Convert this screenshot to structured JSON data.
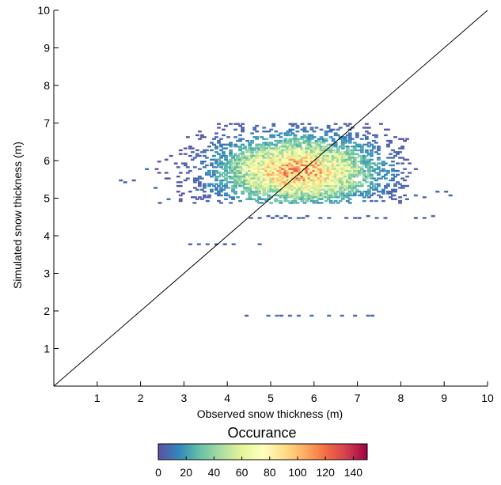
{
  "chart_data": {
    "type": "heatmap",
    "title": "",
    "xlabel": "Observed snow thickness (m)",
    "ylabel": "Simulated snow thickness (m)",
    "xlim": [
      0,
      10
    ],
    "ylim": [
      0,
      10
    ],
    "x_ticks": [
      1,
      2,
      3,
      4,
      5,
      6,
      7,
      8,
      9,
      10
    ],
    "y_ticks": [
      1,
      2,
      3,
      4,
      5,
      6,
      7,
      8,
      9,
      10
    ],
    "reference_line": {
      "from": [
        0,
        0
      ],
      "to": [
        10,
        10
      ]
    },
    "density_model": {
      "center": [
        5.6,
        5.7
      ],
      "spread": [
        1.05,
        0.52
      ],
      "peak_count": 110,
      "x_range": [
        2.0,
        8.2
      ],
      "y_range": [
        4.85,
        6.95
      ]
    },
    "sparse_points": [
      [
        1.5,
        5.5
      ],
      [
        1.6,
        5.45
      ],
      [
        1.8,
        5.5
      ],
      [
        2.1,
        5.8
      ],
      [
        2.3,
        5.3
      ],
      [
        2.4,
        4.9
      ],
      [
        2.6,
        5.0
      ],
      [
        3.2,
        4.9
      ],
      [
        3.5,
        4.95
      ],
      [
        7.8,
        5.1
      ],
      [
        8.0,
        5.3
      ],
      [
        8.1,
        5.0
      ],
      [
        8.3,
        5.1
      ],
      [
        8.5,
        5.05
      ],
      [
        8.8,
        5.2
      ],
      [
        9.0,
        5.2
      ],
      [
        9.1,
        5.1
      ],
      [
        8.3,
        5.8
      ],
      [
        4.5,
        4.5
      ],
      [
        4.7,
        4.5
      ],
      [
        4.9,
        4.55
      ],
      [
        5.0,
        4.5
      ],
      [
        5.1,
        4.55
      ],
      [
        5.2,
        4.5
      ],
      [
        5.3,
        4.55
      ],
      [
        5.4,
        4.5
      ],
      [
        5.6,
        4.5
      ],
      [
        5.7,
        4.5
      ],
      [
        5.8,
        4.55
      ],
      [
        6.1,
        4.5
      ],
      [
        6.3,
        4.5
      ],
      [
        6.7,
        4.5
      ],
      [
        6.9,
        4.5
      ],
      [
        7.0,
        4.5
      ],
      [
        7.2,
        4.55
      ],
      [
        7.4,
        4.5
      ],
      [
        7.6,
        4.5
      ],
      [
        8.3,
        4.5
      ],
      [
        8.5,
        4.5
      ],
      [
        8.7,
        4.55
      ],
      [
        3.1,
        3.8
      ],
      [
        3.3,
        3.8
      ],
      [
        3.5,
        3.8
      ],
      [
        3.7,
        3.8
      ],
      [
        3.9,
        3.8
      ],
      [
        4.1,
        3.8
      ],
      [
        4.7,
        3.8
      ],
      [
        4.4,
        1.9
      ],
      [
        4.9,
        1.9
      ],
      [
        5.1,
        1.9
      ],
      [
        5.2,
        1.9
      ],
      [
        5.4,
        1.9
      ],
      [
        5.6,
        1.9
      ],
      [
        5.9,
        1.9
      ],
      [
        6.3,
        1.9
      ],
      [
        6.6,
        1.9
      ],
      [
        6.9,
        1.9
      ],
      [
        7.2,
        1.9
      ],
      [
        7.3,
        1.9
      ]
    ],
    "colorbar": {
      "title": "Occurance",
      "min": 0,
      "max": 150,
      "ticks": [
        0,
        20,
        40,
        60,
        80,
        100,
        120,
        140
      ],
      "colormap": [
        "#5e4fa2",
        "#3288bd",
        "#66c2a5",
        "#abdda4",
        "#e6f598",
        "#ffffbf",
        "#fee08b",
        "#fdae61",
        "#f46d43",
        "#d53e4f",
        "#9e0142"
      ]
    }
  }
}
